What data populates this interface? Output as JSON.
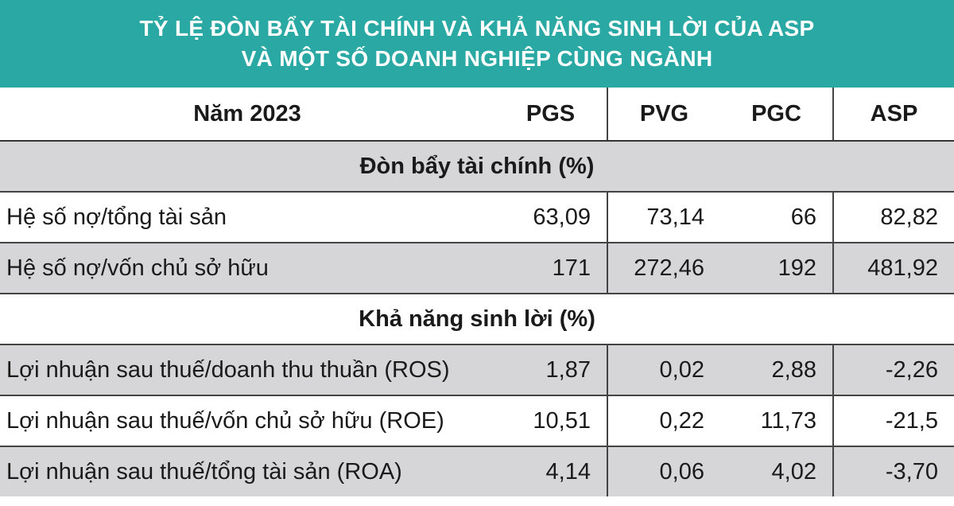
{
  "title": {
    "line1": "TỶ LỆ ĐÒN BẨY TÀI CHÍNH VÀ KHẢ NĂNG SINH LỜI CỦA ASP",
    "line2": "VÀ MỘT SỐ DOANH NGHIỆP CÙNG NGÀNH"
  },
  "colors": {
    "title_bg": "#2aa8a3",
    "shaded_row": "#d6d6d8"
  },
  "chart_data": {
    "type": "table",
    "header": [
      "Năm 2023",
      "PGS",
      "PVG",
      "PGC",
      "ASP"
    ],
    "sections": [
      {
        "name": "Đòn bẩy tài chính (%)",
        "rows": [
          {
            "label": "Hệ số nợ/tổng tài sản",
            "values": [
              "63,09",
              "73,14",
              "66",
              "82,82"
            ]
          },
          {
            "label": "Hệ số nợ/vốn chủ sở hữu",
            "values": [
              "171",
              "272,46",
              "192",
              "481,92"
            ]
          }
        ]
      },
      {
        "name": "Khả năng sinh lời (%)",
        "rows": [
          {
            "label": "Lợi nhuận sau thuế/doanh thu thuần (ROS)",
            "values": [
              "1,87",
              "0,02",
              "2,88",
              "-2,26"
            ]
          },
          {
            "label": "Lợi nhuận sau thuế/vốn chủ sở hữu (ROE)",
            "values": [
              "10,51",
              "0,22",
              "11,73",
              "-21,5"
            ]
          },
          {
            "label": "Lợi nhuận sau thuế/tổng tài sản (ROA)",
            "values": [
              "4,14",
              "0,06",
              "4,02",
              "-3,70"
            ]
          }
        ]
      }
    ]
  }
}
